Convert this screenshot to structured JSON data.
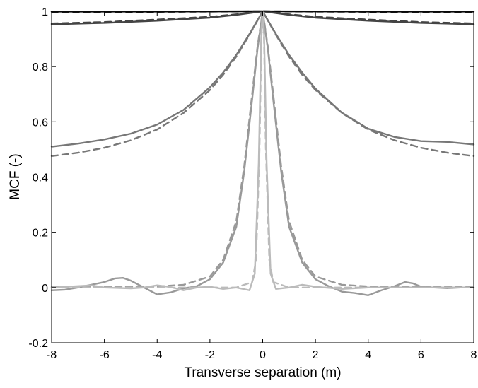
{
  "chart_data": {
    "type": "line",
    "title": "",
    "xlabel": "Transverse separation (m)",
    "ylabel": "MCF (-)",
    "xlim": [
      -8,
      8
    ],
    "ylim": [
      -0.2,
      1
    ],
    "x_ticks": [
      -8,
      -6,
      -4,
      -2,
      0,
      2,
      4,
      6,
      8
    ],
    "y_ticks": [
      -0.2,
      0,
      0.2,
      0.4,
      0.6,
      0.8,
      1
    ],
    "x_tick_labels": [
      "-8",
      "-6",
      "-4",
      "-2",
      "0",
      "2",
      "4",
      "6",
      "8"
    ],
    "y_tick_labels": [
      "-0.2",
      "0",
      "0.2",
      "0.4",
      "0.6",
      "0.8",
      "1"
    ],
    "grid": false,
    "legend": "none",
    "series": [
      {
        "color": "#111111",
        "dash": "solid",
        "x": [
          -8,
          -4,
          0,
          4,
          8
        ],
        "y": [
          0.999,
          0.999,
          1.0,
          0.999,
          0.999
        ]
      },
      {
        "color": "#111111",
        "dash": "dashed",
        "x": [
          -8,
          -4,
          0,
          4,
          8
        ],
        "y": [
          0.998,
          0.998,
          1.0,
          0.998,
          0.998
        ]
      },
      {
        "color": "#444444",
        "dash": "solid",
        "x": [
          -8,
          -6,
          -4,
          -2,
          -1,
          0,
          1,
          2,
          4,
          6,
          8
        ],
        "y": [
          0.953,
          0.958,
          0.966,
          0.977,
          0.987,
          1.0,
          0.987,
          0.977,
          0.966,
          0.958,
          0.953
        ]
      },
      {
        "color": "#444444",
        "dash": "dashed",
        "x": [
          -8,
          -6,
          -4,
          -2,
          -1,
          0,
          1,
          2,
          4,
          6,
          8
        ],
        "y": [
          0.956,
          0.961,
          0.97,
          0.98,
          0.989,
          1.0,
          0.989,
          0.98,
          0.97,
          0.961,
          0.956
        ]
      },
      {
        "color": "#777777",
        "dash": "solid",
        "x": [
          -8,
          -7,
          -6,
          -5,
          -4,
          -3,
          -2,
          -1.5,
          -1,
          -0.5,
          0,
          0.5,
          1,
          1.5,
          2,
          3,
          4,
          5,
          6,
          7,
          8
        ],
        "y": [
          0.51,
          0.521,
          0.536,
          0.557,
          0.59,
          0.643,
          0.725,
          0.778,
          0.842,
          0.918,
          1.0,
          0.918,
          0.842,
          0.778,
          0.72,
          0.633,
          0.575,
          0.545,
          0.53,
          0.527,
          0.518
        ]
      },
      {
        "color": "#777777",
        "dash": "dashed",
        "x": [
          -8,
          -7,
          -6,
          -5,
          -4,
          -3,
          -2,
          -1.5,
          -1,
          -0.5,
          0,
          0.5,
          1,
          1.5,
          2,
          3,
          4,
          5,
          6,
          7,
          8
        ],
        "y": [
          0.476,
          0.488,
          0.506,
          0.533,
          0.572,
          0.632,
          0.715,
          0.77,
          0.836,
          0.915,
          1.0,
          0.915,
          0.836,
          0.77,
          0.715,
          0.632,
          0.572,
          0.533,
          0.506,
          0.488,
          0.476
        ]
      },
      {
        "color": "#999999",
        "dash": "solid",
        "x": [
          -8,
          -7.5,
          -7,
          -6.5,
          -6,
          -5.6,
          -5.3,
          -5,
          -4.5,
          -4,
          -3.5,
          -3,
          -2.5,
          -2,
          -1.5,
          -1,
          -0.7,
          -0.4,
          -0.2,
          0,
          0.2,
          0.4,
          0.7,
          1,
          1.5,
          2,
          2.5,
          3,
          3.5,
          4,
          4.5,
          5,
          5.4,
          5.7,
          6,
          6.5,
          7,
          7.5,
          8
        ],
        "y": [
          -0.01,
          -0.008,
          0.0,
          0.01,
          0.02,
          0.033,
          0.035,
          0.025,
          0.0,
          -0.025,
          -0.018,
          -0.003,
          0.005,
          0.03,
          0.09,
          0.22,
          0.42,
          0.68,
          0.86,
          1.0,
          0.86,
          0.68,
          0.42,
          0.22,
          0.09,
          0.03,
          0.005,
          -0.015,
          -0.02,
          -0.028,
          -0.01,
          0.005,
          0.02,
          0.015,
          0.003,
          0.0,
          -0.002,
          0.0,
          0.0
        ]
      },
      {
        "color": "#999999",
        "dash": "dashed",
        "x": [
          -8,
          -6,
          -4,
          -3,
          -2,
          -1.5,
          -1,
          -0.7,
          -0.4,
          -0.2,
          0,
          0.2,
          0.4,
          0.7,
          1,
          1.5,
          2,
          3,
          4,
          6,
          8
        ],
        "y": [
          0.002,
          0.003,
          0.004,
          0.01,
          0.04,
          0.1,
          0.24,
          0.44,
          0.7,
          0.87,
          1.0,
          0.87,
          0.7,
          0.44,
          0.24,
          0.1,
          0.04,
          0.01,
          0.004,
          0.003,
          0.002
        ]
      },
      {
        "color": "#bbbbbb",
        "dash": "solid",
        "x": [
          -8,
          -7,
          -6.5,
          -6,
          -5,
          -4.5,
          -4,
          -3.5,
          -3,
          -2.5,
          -2,
          -1.5,
          -1,
          -0.5,
          -0.3,
          -0.15,
          -0.05,
          0,
          0.05,
          0.15,
          0.3,
          0.5,
          1,
          1.5,
          2,
          3,
          4,
          5,
          6,
          7,
          8
        ],
        "y": [
          0.0,
          0.005,
          0.008,
          0.0,
          -0.003,
          0.0,
          0.008,
          0.002,
          -0.01,
          0.0,
          0.003,
          -0.005,
          0.0,
          -0.01,
          0.05,
          0.45,
          0.93,
          1.0,
          0.93,
          0.45,
          0.05,
          -0.005,
          0.0,
          0.01,
          0.003,
          -0.005,
          0.0,
          0.0,
          0.0,
          0.0,
          0.0
        ]
      },
      {
        "color": "#bbbbbb",
        "dash": "dashed",
        "x": [
          -8,
          -4,
          -1,
          -0.4,
          -0.25,
          -0.12,
          -0.05,
          0,
          0.05,
          0.12,
          0.25,
          0.4,
          1,
          4,
          8
        ],
        "y": [
          0.0,
          0.0,
          0.0,
          0.02,
          0.1,
          0.5,
          0.9,
          1.0,
          0.9,
          0.5,
          0.1,
          0.02,
          0.0,
          0.0,
          0.0
        ]
      }
    ]
  }
}
